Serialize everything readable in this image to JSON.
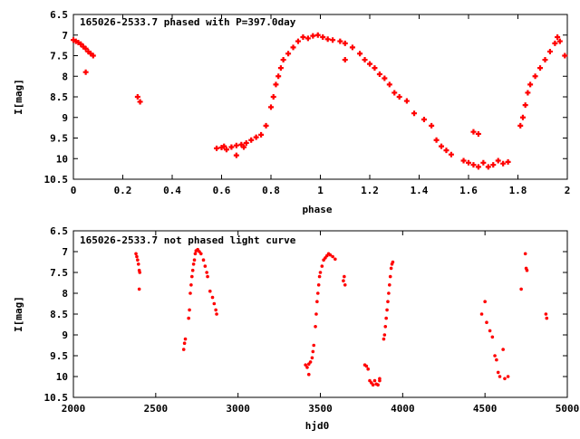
{
  "chart_data": [
    {
      "type": "scatter",
      "title": "165026-2533.7 phased with P=397.0day",
      "xlabel": "phase",
      "ylabel": "I[mag]",
      "xlim": [
        0,
        2
      ],
      "ylim": [
        10.5,
        6.5
      ],
      "y_inverted": true,
      "xticks": [
        "0",
        "0.2",
        "0.4",
        "0.6",
        "0.8",
        "1",
        "1.2",
        "1.4",
        "1.6",
        "1.8",
        "2"
      ],
      "yticks": [
        "6.5",
        "7",
        "7.5",
        "8",
        "8.5",
        "9",
        "9.5",
        "10",
        "10.5"
      ],
      "grid": false,
      "marker": "plus",
      "color": "#ff0000",
      "series": [
        {
          "points": [
            [
              0.0,
              7.12
            ],
            [
              0.01,
              7.15
            ],
            [
              0.02,
              7.18
            ],
            [
              0.03,
              7.22
            ],
            [
              0.04,
              7.28
            ],
            [
              0.05,
              7.33
            ],
            [
              0.06,
              7.4
            ],
            [
              0.07,
              7.45
            ],
            [
              0.08,
              7.5
            ],
            [
              0.05,
              7.9
            ],
            [
              0.26,
              8.5
            ],
            [
              0.27,
              8.62
            ],
            [
              0.58,
              9.75
            ],
            [
              0.6,
              9.73
            ],
            [
              0.62,
              9.78
            ],
            [
              0.64,
              9.72
            ],
            [
              0.66,
              9.68
            ],
            [
              0.68,
              9.66
            ],
            [
              0.7,
              9.62
            ],
            [
              0.72,
              9.55
            ],
            [
              0.74,
              9.48
            ],
            [
              0.76,
              9.42
            ],
            [
              0.78,
              9.2
            ],
            [
              0.66,
              9.92
            ],
            [
              0.61,
              9.7
            ],
            [
              0.69,
              9.72
            ],
            [
              0.8,
              8.75
            ],
            [
              0.81,
              8.5
            ],
            [
              0.82,
              8.2
            ],
            [
              0.83,
              8.0
            ],
            [
              0.84,
              7.8
            ],
            [
              0.85,
              7.6
            ],
            [
              0.87,
              7.45
            ],
            [
              0.89,
              7.3
            ],
            [
              0.91,
              7.15
            ],
            [
              0.93,
              7.05
            ],
            [
              0.95,
              7.08
            ],
            [
              0.97,
              7.02
            ],
            [
              0.99,
              7.0
            ],
            [
              1.01,
              7.05
            ],
            [
              1.03,
              7.1
            ],
            [
              1.05,
              7.12
            ],
            [
              1.08,
              7.15
            ],
            [
              1.1,
              7.2
            ],
            [
              1.1,
              7.6
            ],
            [
              1.13,
              7.3
            ],
            [
              1.16,
              7.45
            ],
            [
              1.18,
              7.6
            ],
            [
              1.2,
              7.7
            ],
            [
              1.22,
              7.8
            ],
            [
              1.24,
              7.95
            ],
            [
              1.26,
              8.05
            ],
            [
              1.28,
              8.2
            ],
            [
              1.3,
              8.4
            ],
            [
              1.32,
              8.5
            ],
            [
              1.35,
              8.6
            ],
            [
              1.38,
              8.9
            ],
            [
              1.42,
              9.05
            ],
            [
              1.45,
              9.2
            ],
            [
              1.47,
              9.55
            ],
            [
              1.49,
              9.7
            ],
            [
              1.51,
              9.8
            ],
            [
              1.53,
              9.9
            ],
            [
              1.58,
              10.05
            ],
            [
              1.6,
              10.1
            ],
            [
              1.62,
              10.15
            ],
            [
              1.64,
              10.2
            ],
            [
              1.66,
              10.1
            ],
            [
              1.68,
              10.2
            ],
            [
              1.7,
              10.15
            ],
            [
              1.72,
              10.05
            ],
            [
              1.74,
              10.12
            ],
            [
              1.76,
              10.08
            ],
            [
              1.62,
              9.35
            ],
            [
              1.64,
              9.4
            ],
            [
              1.81,
              9.2
            ],
            [
              1.82,
              9.0
            ],
            [
              1.83,
              8.7
            ],
            [
              1.84,
              8.4
            ],
            [
              1.85,
              8.2
            ],
            [
              1.87,
              8.0
            ],
            [
              1.89,
              7.8
            ],
            [
              1.91,
              7.6
            ],
            [
              1.93,
              7.4
            ],
            [
              1.95,
              7.2
            ],
            [
              1.96,
              7.05
            ],
            [
              1.97,
              7.15
            ],
            [
              1.99,
              7.5
            ]
          ]
        }
      ]
    },
    {
      "type": "scatter",
      "title": "165026-2533.7 not phased light curve",
      "xlabel": "hjd0",
      "ylabel": "I[mag]",
      "xlim": [
        2000,
        5000
      ],
      "ylim": [
        10.5,
        6.5
      ],
      "y_inverted": true,
      "xticks": [
        "2000",
        "2500",
        "3000",
        "3500",
        "4000",
        "4500",
        "5000"
      ],
      "yticks": [
        "6.5",
        "7",
        "7.5",
        "8",
        "8.5",
        "9",
        "9.5",
        "10",
        "10.5"
      ],
      "grid": false,
      "marker": "dot",
      "color": "#ff0000",
      "series": [
        {
          "points": [
            [
              2380,
              7.05
            ],
            [
              2385,
              7.12
            ],
            [
              2390,
              7.2
            ],
            [
              2395,
              7.3
            ],
            [
              2400,
              7.45
            ],
            [
              2403,
              7.5
            ],
            [
              2400,
              7.9
            ],
            [
              2670,
              9.35
            ],
            [
              2675,
              9.2
            ],
            [
              2680,
              9.1
            ],
            [
              2700,
              8.6
            ],
            [
              2705,
              8.4
            ],
            [
              2710,
              8.0
            ],
            [
              2715,
              7.8
            ],
            [
              2720,
              7.6
            ],
            [
              2725,
              7.45
            ],
            [
              2730,
              7.3
            ],
            [
              2735,
              7.2
            ],
            [
              2740,
              7.05
            ],
            [
              2745,
              6.98
            ],
            [
              2755,
              6.95
            ],
            [
              2765,
              7.0
            ],
            [
              2775,
              7.05
            ],
            [
              2790,
              7.2
            ],
            [
              2800,
              7.35
            ],
            [
              2810,
              7.5
            ],
            [
              2815,
              7.6
            ],
            [
              2830,
              7.95
            ],
            [
              2845,
              8.1
            ],
            [
              2855,
              8.25
            ],
            [
              2865,
              8.4
            ],
            [
              2870,
              8.5
            ],
            [
              3410,
              9.72
            ],
            [
              3420,
              9.78
            ],
            [
              3430,
              9.7
            ],
            [
              3440,
              9.65
            ],
            [
              3450,
              9.55
            ],
            [
              3455,
              9.4
            ],
            [
              3460,
              9.25
            ],
            [
              3430,
              9.95
            ],
            [
              3470,
              8.8
            ],
            [
              3475,
              8.5
            ],
            [
              3480,
              8.2
            ],
            [
              3485,
              8.0
            ],
            [
              3490,
              7.8
            ],
            [
              3495,
              7.6
            ],
            [
              3500,
              7.5
            ],
            [
              3510,
              7.35
            ],
            [
              3520,
              7.2
            ],
            [
              3530,
              7.15
            ],
            [
              3540,
              7.1
            ],
            [
              3550,
              7.05
            ],
            [
              3560,
              7.08
            ],
            [
              3575,
              7.12
            ],
            [
              3590,
              7.18
            ],
            [
              3640,
              7.7
            ],
            [
              3650,
              7.8
            ],
            [
              3645,
              7.6
            ],
            [
              3770,
              9.72
            ],
            [
              3780,
              9.75
            ],
            [
              3790,
              9.82
            ],
            [
              3800,
              10.1
            ],
            [
              3810,
              10.15
            ],
            [
              3820,
              10.2
            ],
            [
              3830,
              10.1
            ],
            [
              3840,
              10.18
            ],
            [
              3850,
              10.2
            ],
            [
              3860,
              10.1
            ],
            [
              3860,
              10.05
            ],
            [
              3885,
              9.1
            ],
            [
              3890,
              9.0
            ],
            [
              3895,
              8.8
            ],
            [
              3900,
              8.6
            ],
            [
              3905,
              8.4
            ],
            [
              3910,
              8.2
            ],
            [
              3915,
              8.0
            ],
            [
              3920,
              7.8
            ],
            [
              3925,
              7.6
            ],
            [
              3930,
              7.4
            ],
            [
              3935,
              7.3
            ],
            [
              3940,
              7.25
            ],
            [
              4480,
              8.5
            ],
            [
              4500,
              8.2
            ],
            [
              4510,
              8.7
            ],
            [
              4530,
              8.9
            ],
            [
              4545,
              9.05
            ],
            [
              4560,
              9.5
            ],
            [
              4570,
              9.6
            ],
            [
              4580,
              9.9
            ],
            [
              4590,
              10.0
            ],
            [
              4610,
              9.35
            ],
            [
              4620,
              10.05
            ],
            [
              4640,
              10.0
            ],
            [
              4720,
              7.9
            ],
            [
              4745,
              7.05
            ],
            [
              4750,
              7.4
            ],
            [
              4755,
              7.45
            ],
            [
              4870,
              8.5
            ],
            [
              4875,
              8.6
            ]
          ]
        }
      ]
    }
  ]
}
